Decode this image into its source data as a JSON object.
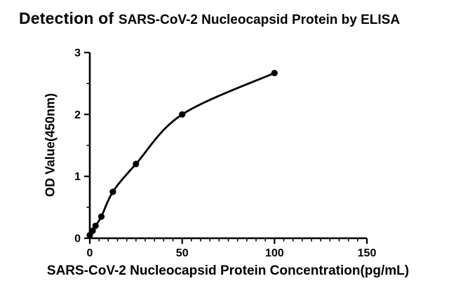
{
  "title": {
    "prefix": "Detection of ",
    "main": "SARS-CoV-2 Nucleocapsid Protein by ELISA"
  },
  "chart_data": {
    "type": "scatter",
    "fit": "saturation-binding-curve",
    "x": [
      0,
      1.5625,
      3.125,
      6.25,
      12.5,
      25,
      50,
      100
    ],
    "y": [
      0.05,
      0.12,
      0.2,
      0.35,
      0.75,
      1.2,
      2.0,
      2.67
    ],
    "title": "Detection of SARS-CoV-2 Nucleocapsid Protein by ELISA",
    "xlabel": "SARS-CoV-2 Nucleocapsid Protein Concentration(pg/mL)",
    "ylabel": "OD Value(450nm)",
    "xlim": [
      0,
      150
    ],
    "ylim": [
      0,
      3
    ],
    "x_major_ticks": [
      0,
      50,
      100,
      150
    ],
    "y_major_ticks": [
      0,
      1,
      2,
      3
    ],
    "x_minor_step": 5,
    "y_minor_step": 0.5,
    "grid": false,
    "legend": "none",
    "axis_color": "#000000",
    "marker_color": "#000000",
    "curve_color": "#000000"
  }
}
